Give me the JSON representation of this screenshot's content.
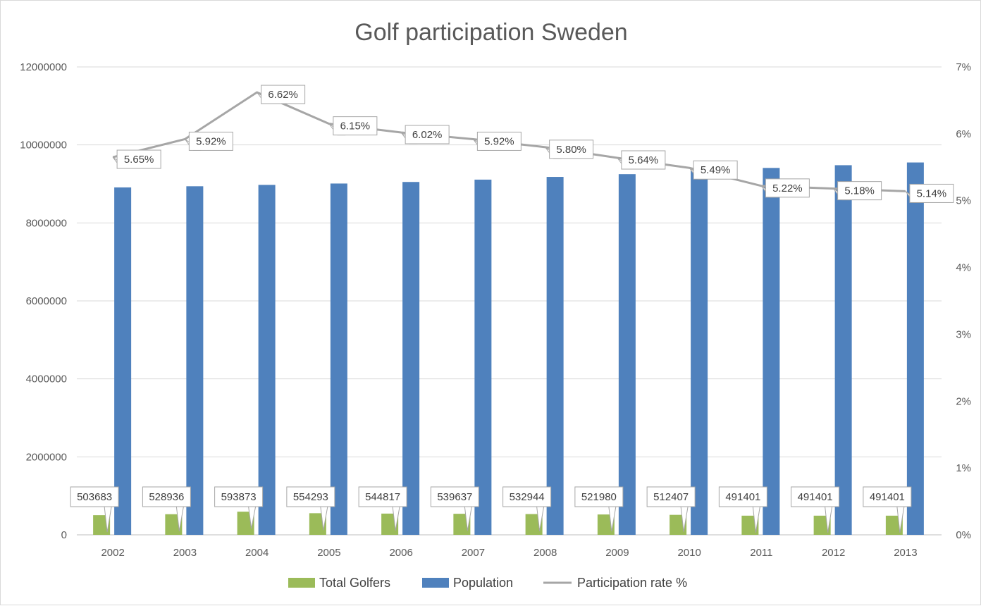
{
  "chart_data": {
    "type": "bar",
    "title": "Golf participation Sweden",
    "categories": [
      "2002",
      "2003",
      "2004",
      "2005",
      "2006",
      "2007",
      "2008",
      "2009",
      "2010",
      "2011",
      "2012",
      "2013"
    ],
    "series": [
      {
        "name": "Total Golfers",
        "kind": "bar",
        "axis": "left",
        "color": "#9bbb59",
        "values": [
          503683,
          528936,
          593873,
          554293,
          544817,
          539637,
          532944,
          521980,
          512407,
          491401,
          491401,
          491401
        ]
      },
      {
        "name": "Population",
        "kind": "bar",
        "axis": "left",
        "color": "#4f81bd",
        "values": [
          8910000,
          8940000,
          8975000,
          9010000,
          9050000,
          9110000,
          9180000,
          9250000,
          9340000,
          9410000,
          9480000,
          9550000
        ]
      },
      {
        "name": "Participation rate %",
        "kind": "line",
        "axis": "right",
        "color": "#a6a6a6",
        "values": [
          5.65,
          5.92,
          6.62,
          6.15,
          6.02,
          5.92,
          5.8,
          5.64,
          5.49,
          5.22,
          5.18,
          5.14
        ],
        "labels": [
          "5.65%",
          "5.92%",
          "6.62%",
          "6.15%",
          "6.02%",
          "5.92%",
          "5.80%",
          "5.64%",
          "5.49%",
          "5.22%",
          "5.18%",
          "5.14%"
        ]
      }
    ],
    "left_axis": {
      "ylim": [
        0,
        12000000
      ],
      "ticks": [
        0,
        2000000,
        4000000,
        6000000,
        8000000,
        10000000,
        12000000
      ],
      "tick_labels": [
        "0",
        "2000000",
        "4000000",
        "6000000",
        "8000000",
        "10000000",
        "12000000"
      ]
    },
    "right_axis": {
      "ylim": [
        0,
        7
      ],
      "ticks": [
        0,
        1,
        2,
        3,
        4,
        5,
        6,
        7
      ],
      "tick_labels": [
        "0%",
        "1%",
        "2%",
        "3%",
        "4%",
        "5%",
        "6%",
        "7%"
      ]
    },
    "grid": true,
    "legend_position": "bottom"
  }
}
